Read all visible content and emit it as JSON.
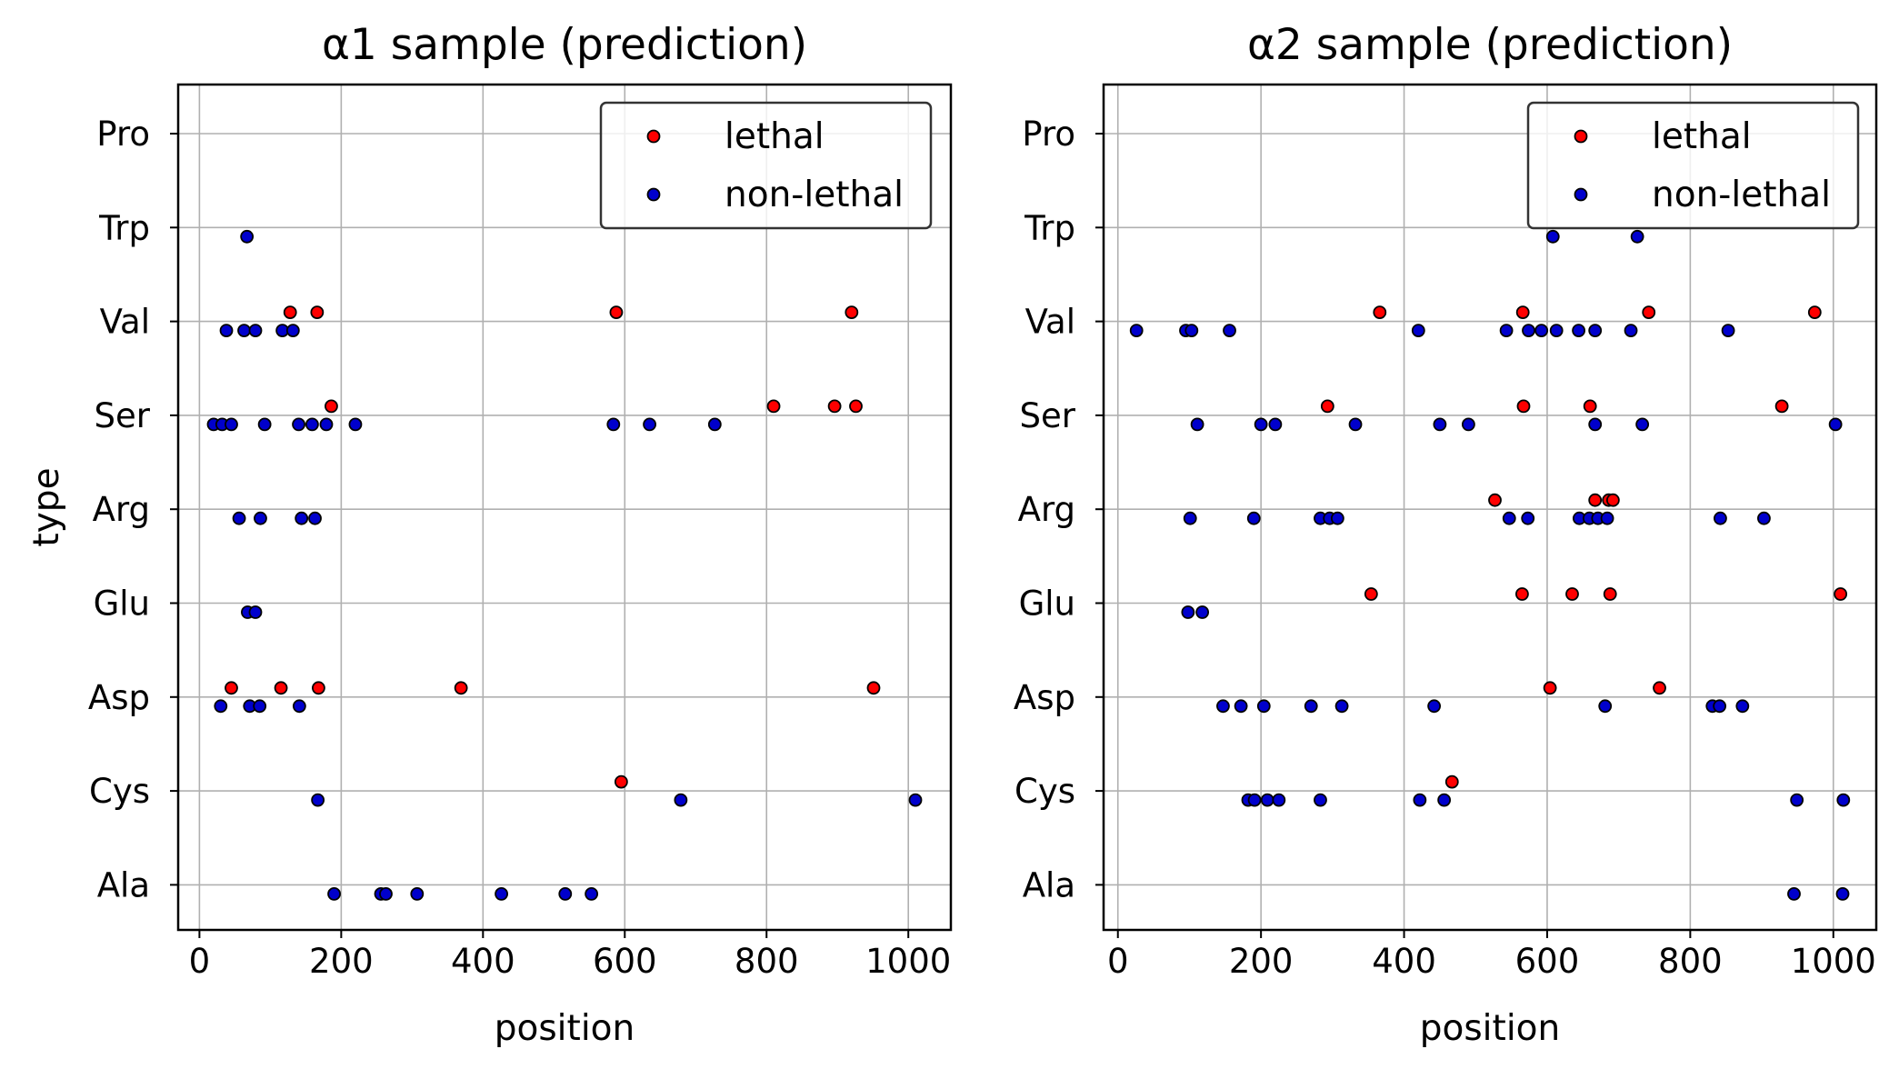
{
  "figure": {
    "ylabel": "type",
    "colors": {
      "lethal": "#ff0000",
      "non_lethal": "#0000cc",
      "edge": "#000000",
      "grid": "#b0b0b0"
    }
  },
  "chart_data": [
    {
      "type": "scatter",
      "title": "α1 sample (prediction)",
      "xlabel": "position",
      "ylabel": "type",
      "xlim": [
        -30,
        1060
      ],
      "xticks": [
        0,
        200,
        400,
        600,
        800,
        1000
      ],
      "categories": [
        "Ala",
        "Cys",
        "Asp",
        "Glu",
        "Arg",
        "Ser",
        "Val",
        "Trp",
        "Pro"
      ],
      "grid": true,
      "legend": {
        "placement": "upper right",
        "entries": [
          "lethal",
          "non-lethal"
        ]
      },
      "series": [
        {
          "name": "lethal",
          "color": "#ff0000",
          "points": [
            {
              "x": 128,
              "y": "Val"
            },
            {
              "x": 166,
              "y": "Val"
            },
            {
              "x": 588,
              "y": "Val"
            },
            {
              "x": 920,
              "y": "Val"
            },
            {
              "x": 186,
              "y": "Ser"
            },
            {
              "x": 810,
              "y": "Ser"
            },
            {
              "x": 896,
              "y": "Ser"
            },
            {
              "x": 926,
              "y": "Ser"
            },
            {
              "x": 45,
              "y": "Asp"
            },
            {
              "x": 115,
              "y": "Asp"
            },
            {
              "x": 168,
              "y": "Asp"
            },
            {
              "x": 369,
              "y": "Asp"
            },
            {
              "x": 951,
              "y": "Asp"
            },
            {
              "x": 595,
              "y": "Cys"
            }
          ]
        },
        {
          "name": "non-lethal",
          "color": "#0000cc",
          "points": [
            {
              "x": 67,
              "y": "Trp"
            },
            {
              "x": 38,
              "y": "Val"
            },
            {
              "x": 63,
              "y": "Val"
            },
            {
              "x": 79,
              "y": "Val"
            },
            {
              "x": 117,
              "y": "Val"
            },
            {
              "x": 132,
              "y": "Val"
            },
            {
              "x": 20,
              "y": "Ser"
            },
            {
              "x": 32,
              "y": "Ser"
            },
            {
              "x": 45,
              "y": "Ser"
            },
            {
              "x": 92,
              "y": "Ser"
            },
            {
              "x": 140,
              "y": "Ser"
            },
            {
              "x": 159,
              "y": "Ser"
            },
            {
              "x": 179,
              "y": "Ser"
            },
            {
              "x": 220,
              "y": "Ser"
            },
            {
              "x": 584,
              "y": "Ser"
            },
            {
              "x": 635,
              "y": "Ser"
            },
            {
              "x": 727,
              "y": "Ser"
            },
            {
              "x": 56,
              "y": "Arg"
            },
            {
              "x": 86,
              "y": "Arg"
            },
            {
              "x": 144,
              "y": "Arg"
            },
            {
              "x": 163,
              "y": "Arg"
            },
            {
              "x": 68,
              "y": "Glu"
            },
            {
              "x": 79,
              "y": "Glu"
            },
            {
              "x": 30,
              "y": "Asp"
            },
            {
              "x": 71,
              "y": "Asp"
            },
            {
              "x": 85,
              "y": "Asp"
            },
            {
              "x": 141,
              "y": "Asp"
            },
            {
              "x": 167,
              "y": "Cys"
            },
            {
              "x": 679,
              "y": "Cys"
            },
            {
              "x": 1010,
              "y": "Cys"
            },
            {
              "x": 190,
              "y": "Ala"
            },
            {
              "x": 256,
              "y": "Ala"
            },
            {
              "x": 263,
              "y": "Ala"
            },
            {
              "x": 307,
              "y": "Ala"
            },
            {
              "x": 426,
              "y": "Ala"
            },
            {
              "x": 516,
              "y": "Ala"
            },
            {
              "x": 553,
              "y": "Ala"
            }
          ]
        }
      ]
    },
    {
      "type": "scatter",
      "title": "α2 sample (prediction)",
      "xlabel": "position",
      "xlim": [
        -20,
        1060
      ],
      "xticks": [
        0,
        200,
        400,
        600,
        800,
        1000
      ],
      "categories": [
        "Ala",
        "Cys",
        "Asp",
        "Glu",
        "Arg",
        "Ser",
        "Val",
        "Trp",
        "Pro"
      ],
      "grid": true,
      "legend": {
        "placement": "upper right",
        "entries": [
          "lethal",
          "non-lethal"
        ]
      },
      "series": [
        {
          "name": "lethal",
          "color": "#ff0000",
          "points": [
            {
              "x": 366,
              "y": "Val"
            },
            {
              "x": 566,
              "y": "Val"
            },
            {
              "x": 742,
              "y": "Val"
            },
            {
              "x": 974,
              "y": "Val"
            },
            {
              "x": 293,
              "y": "Ser"
            },
            {
              "x": 567,
              "y": "Ser"
            },
            {
              "x": 660,
              "y": "Ser"
            },
            {
              "x": 928,
              "y": "Ser"
            },
            {
              "x": 527,
              "y": "Arg"
            },
            {
              "x": 667,
              "y": "Arg"
            },
            {
              "x": 686,
              "y": "Arg"
            },
            {
              "x": 692,
              "y": "Arg"
            },
            {
              "x": 354,
              "y": "Glu"
            },
            {
              "x": 565,
              "y": "Glu"
            },
            {
              "x": 635,
              "y": "Glu"
            },
            {
              "x": 688,
              "y": "Glu"
            },
            {
              "x": 1010,
              "y": "Glu"
            },
            {
              "x": 604,
              "y": "Asp"
            },
            {
              "x": 757,
              "y": "Asp"
            },
            {
              "x": 467,
              "y": "Cys"
            }
          ]
        },
        {
          "name": "non-lethal",
          "color": "#0000cc",
          "points": [
            {
              "x": 608,
              "y": "Trp"
            },
            {
              "x": 726,
              "y": "Trp"
            },
            {
              "x": 26,
              "y": "Val"
            },
            {
              "x": 95,
              "y": "Val"
            },
            {
              "x": 103,
              "y": "Val"
            },
            {
              "x": 156,
              "y": "Val"
            },
            {
              "x": 420,
              "y": "Val"
            },
            {
              "x": 543,
              "y": "Val"
            },
            {
              "x": 574,
              "y": "Val"
            },
            {
              "x": 592,
              "y": "Val"
            },
            {
              "x": 613,
              "y": "Val"
            },
            {
              "x": 644,
              "y": "Val"
            },
            {
              "x": 667,
              "y": "Val"
            },
            {
              "x": 717,
              "y": "Val"
            },
            {
              "x": 853,
              "y": "Val"
            },
            {
              "x": 111,
              "y": "Ser"
            },
            {
              "x": 200,
              "y": "Ser"
            },
            {
              "x": 220,
              "y": "Ser"
            },
            {
              "x": 332,
              "y": "Ser"
            },
            {
              "x": 450,
              "y": "Ser"
            },
            {
              "x": 490,
              "y": "Ser"
            },
            {
              "x": 667,
              "y": "Ser"
            },
            {
              "x": 733,
              "y": "Ser"
            },
            {
              "x": 1003,
              "y": "Ser"
            },
            {
              "x": 101,
              "y": "Arg"
            },
            {
              "x": 190,
              "y": "Arg"
            },
            {
              "x": 283,
              "y": "Arg"
            },
            {
              "x": 296,
              "y": "Arg"
            },
            {
              "x": 307,
              "y": "Arg"
            },
            {
              "x": 547,
              "y": "Arg"
            },
            {
              "x": 573,
              "y": "Arg"
            },
            {
              "x": 645,
              "y": "Arg"
            },
            {
              "x": 659,
              "y": "Arg"
            },
            {
              "x": 671,
              "y": "Arg"
            },
            {
              "x": 684,
              "y": "Arg"
            },
            {
              "x": 842,
              "y": "Arg"
            },
            {
              "x": 903,
              "y": "Arg"
            },
            {
              "x": 98,
              "y": "Glu"
            },
            {
              "x": 118,
              "y": "Glu"
            },
            {
              "x": 147,
              "y": "Asp"
            },
            {
              "x": 172,
              "y": "Asp"
            },
            {
              "x": 204,
              "y": "Asp"
            },
            {
              "x": 270,
              "y": "Asp"
            },
            {
              "x": 313,
              "y": "Asp"
            },
            {
              "x": 442,
              "y": "Asp"
            },
            {
              "x": 681,
              "y": "Asp"
            },
            {
              "x": 831,
              "y": "Asp"
            },
            {
              "x": 841,
              "y": "Asp"
            },
            {
              "x": 873,
              "y": "Asp"
            },
            {
              "x": 182,
              "y": "Cys"
            },
            {
              "x": 191,
              "y": "Cys"
            },
            {
              "x": 209,
              "y": "Cys"
            },
            {
              "x": 225,
              "y": "Cys"
            },
            {
              "x": 283,
              "y": "Cys"
            },
            {
              "x": 422,
              "y": "Cys"
            },
            {
              "x": 456,
              "y": "Cys"
            },
            {
              "x": 949,
              "y": "Cys"
            },
            {
              "x": 1014,
              "y": "Cys"
            },
            {
              "x": 945,
              "y": "Ala"
            },
            {
              "x": 1013,
              "y": "Ala"
            }
          ]
        }
      ]
    }
  ]
}
